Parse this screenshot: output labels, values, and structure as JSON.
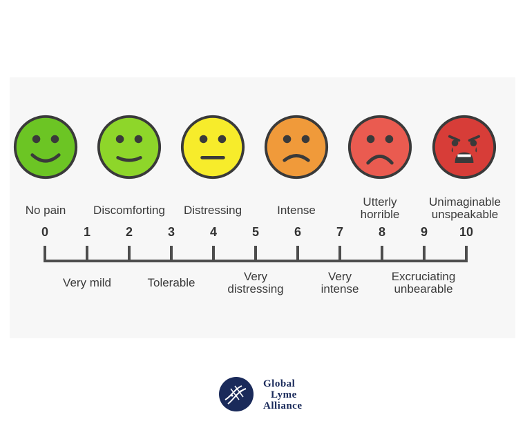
{
  "faces": [
    {
      "name": "face-0",
      "color": "#6cc524",
      "stroke": "#3a3a3a",
      "expression": "happy"
    },
    {
      "name": "face-2",
      "color": "#8ed62a",
      "stroke": "#3a3a3a",
      "expression": "smile"
    },
    {
      "name": "face-4",
      "color": "#f7ec2b",
      "stroke": "#3a3a3a",
      "expression": "neutral"
    },
    {
      "name": "face-6",
      "color": "#f09a3a",
      "stroke": "#3a3a3a",
      "expression": "sad"
    },
    {
      "name": "face-8",
      "color": "#ea5b50",
      "stroke": "#3a3a3a",
      "expression": "frown"
    },
    {
      "name": "face-10",
      "color": "#d73d38",
      "stroke": "#3a3a3a",
      "expression": "crying"
    }
  ],
  "scale": {
    "numbers": [
      "0",
      "1",
      "2",
      "3",
      "4",
      "5",
      "6",
      "7",
      "8",
      "9",
      "10"
    ]
  },
  "top_labels": [
    {
      "text": "No pain"
    },
    {
      "text": "Discomforting"
    },
    {
      "text": "Distressing"
    },
    {
      "text": "Intense"
    },
    {
      "text": "Utterly\nhorrible"
    },
    {
      "text": "Unimaginable\nunspeakable"
    }
  ],
  "bottom_labels": [
    {
      "text": "Very mild"
    },
    {
      "text": "Tolerable"
    },
    {
      "text": "Very\ndistressing"
    },
    {
      "text": "Very\nintense"
    },
    {
      "text": "Excruciating\nunbearable"
    }
  ],
  "logo": {
    "line1": "Global",
    "line2": "Lyme",
    "line3": "Alliance",
    "color": "#1a2a5a"
  }
}
